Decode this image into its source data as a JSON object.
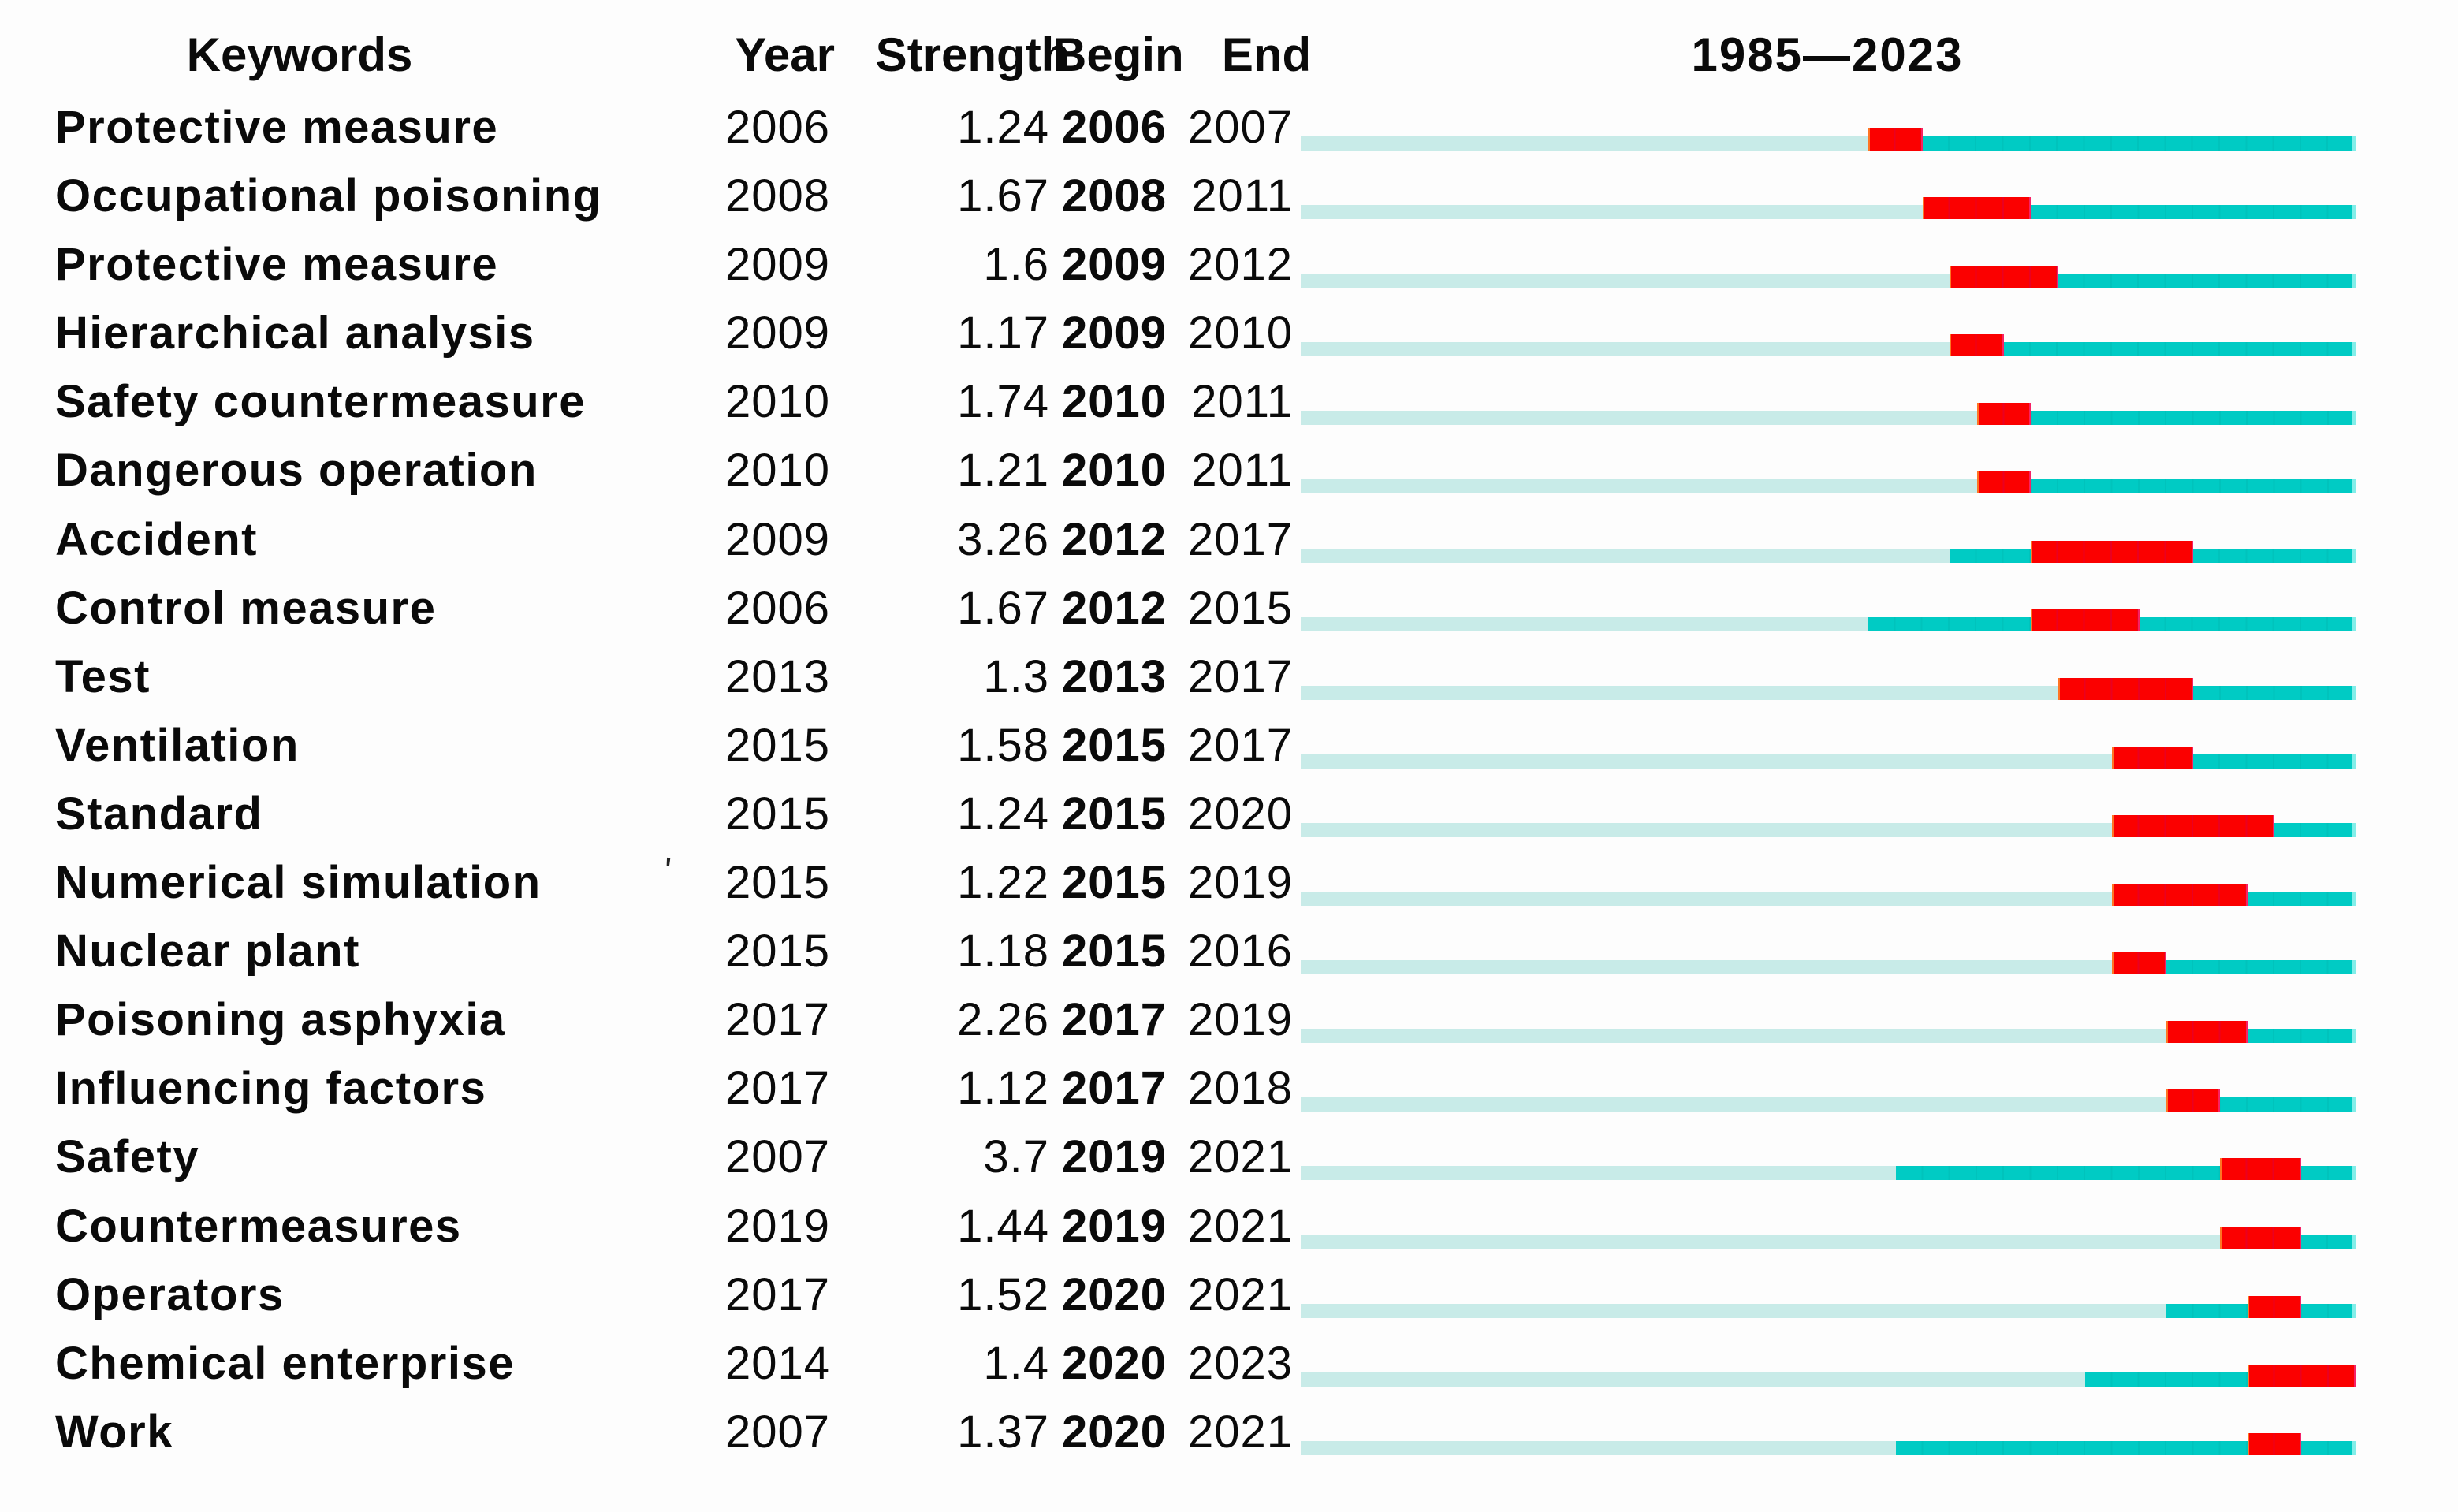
{
  "header": {
    "keywords": "Keywords",
    "year": "Year",
    "strength": "Strength",
    "begin": "Begin",
    "end": "End",
    "range_label": "1985—2023"
  },
  "timeline": {
    "start_year": 1985,
    "end_year": 2023
  },
  "colors": {
    "track": "#c8ebe8",
    "active_bar": "#00cbc4",
    "active_bar_cap": "#82eee9",
    "burst_bar": "#fb0000",
    "burst_separator": "#d20050",
    "burst_edge_left": "#ff8a2a",
    "burst_edge_right": "#ff3d9e",
    "text": "#0a0a0a",
    "background": "#fdfdfd"
  },
  "artifact_mark": "'",
  "chart_data": {
    "type": "bar",
    "variant": "citespace-keyword-citation-burst-gantt",
    "orientation": "horizontal",
    "title": "1985—2023",
    "x_range": [
      1985,
      2023
    ],
    "grid": false,
    "legend_position": "none",
    "columns": [
      "Keywords",
      "Year",
      "Strength",
      "Begin",
      "End"
    ],
    "bar_encoding": {
      "track": "full interval start_year to end_year",
      "active": "from Year to end_year",
      "burst": "from Begin through End (inclusive)"
    },
    "rows": [
      {
        "keyword": "Protective measure",
        "year": 2006,
        "strength": "1.24",
        "begin": 2006,
        "end": 2007
      },
      {
        "keyword": "Occupational poisoning",
        "year": 2008,
        "strength": "1.67",
        "begin": 2008,
        "end": 2011
      },
      {
        "keyword": "Protective measure",
        "year": 2009,
        "strength": "1.6",
        "begin": 2009,
        "end": 2012
      },
      {
        "keyword": "Hierarchical analysis",
        "year": 2009,
        "strength": "1.17",
        "begin": 2009,
        "end": 2010
      },
      {
        "keyword": "Safety countermeasure",
        "year": 2010,
        "strength": "1.74",
        "begin": 2010,
        "end": 2011
      },
      {
        "keyword": "Dangerous operation",
        "year": 2010,
        "strength": "1.21",
        "begin": 2010,
        "end": 2011
      },
      {
        "keyword": "Accident",
        "year": 2009,
        "strength": "3.26",
        "begin": 2012,
        "end": 2017
      },
      {
        "keyword": "Control measure",
        "year": 2006,
        "strength": "1.67",
        "begin": 2012,
        "end": 2015
      },
      {
        "keyword": "Test",
        "year": 2013,
        "strength": "1.3",
        "begin": 2013,
        "end": 2017
      },
      {
        "keyword": "Ventilation",
        "year": 2015,
        "strength": "1.58",
        "begin": 2015,
        "end": 2017
      },
      {
        "keyword": "Standard",
        "year": 2015,
        "strength": "1.24",
        "begin": 2015,
        "end": 2020
      },
      {
        "keyword": "Numerical simulation",
        "year": 2015,
        "strength": "1.22",
        "begin": 2015,
        "end": 2019
      },
      {
        "keyword": "Nuclear plant",
        "year": 2015,
        "strength": "1.18",
        "begin": 2015,
        "end": 2016
      },
      {
        "keyword": "Poisoning asphyxia",
        "year": 2017,
        "strength": "2.26",
        "begin": 2017,
        "end": 2019
      },
      {
        "keyword": "Influencing factors",
        "year": 2017,
        "strength": "1.12",
        "begin": 2017,
        "end": 2018
      },
      {
        "keyword": "Safety",
        "year": 2007,
        "strength": "3.7",
        "begin": 2019,
        "end": 2021
      },
      {
        "keyword": "Countermeasures",
        "year": 2019,
        "strength": "1.44",
        "begin": 2019,
        "end": 2021
      },
      {
        "keyword": "Operators",
        "year": 2017,
        "strength": "1.52",
        "begin": 2020,
        "end": 2021
      },
      {
        "keyword": "Chemical enterprise",
        "year": 2014,
        "strength": "1.4",
        "begin": 2020,
        "end": 2023
      },
      {
        "keyword": "Work",
        "year": 2007,
        "strength": "1.37",
        "begin": 2020,
        "end": 2021
      }
    ]
  }
}
